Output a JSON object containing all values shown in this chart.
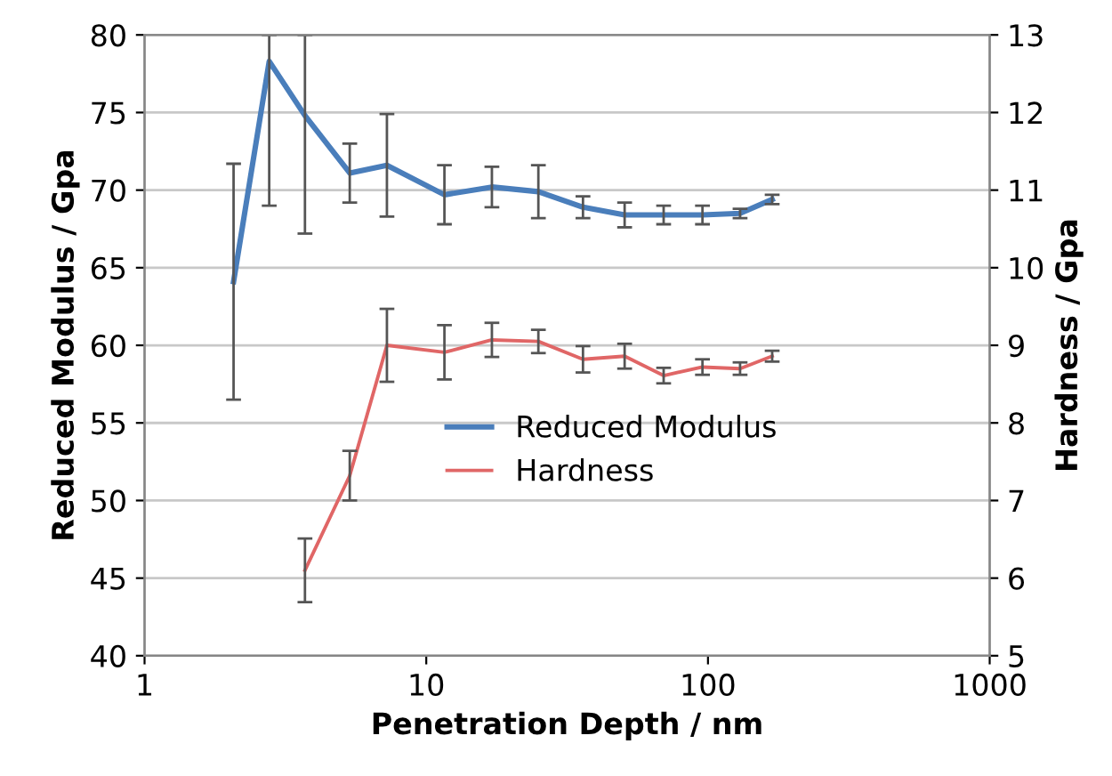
{
  "chart_data": {
    "type": "line",
    "xlabel": "Penetration Depth / nm",
    "ylabel": "Reduced Modulus / Gpa",
    "y2label": "Hardness / Gpa",
    "x": [
      2.07,
      2.77,
      3.71,
      5.35,
      7.25,
      11.6,
      17.1,
      25.0,
      36.0,
      50.6,
      69.6,
      95.6,
      130,
      169
    ],
    "series": [
      {
        "name": "Reduced Modulus",
        "color": "#4a7ebb",
        "values": [
          64.1,
          78.3,
          74.8,
          71.1,
          71.6,
          69.7,
          70.2,
          69.9,
          68.9,
          68.4,
          68.4,
          68.4,
          68.5,
          69.4
        ],
        "errors": [
          7.6,
          [
            69.0,
            80
          ],
          [
            67.2,
            80
          ],
          1.9,
          3.3,
          1.9,
          1.3,
          1.7,
          0.7,
          0.8,
          0.6,
          0.6,
          0.3,
          0.3
        ]
      },
      {
        "name": "Hardness",
        "color": "#e06666",
        "axis": "y2",
        "values": [
          null,
          null,
          6.1,
          7.32,
          9.0,
          8.91,
          9.07,
          9.05,
          8.82,
          8.86,
          8.61,
          8.72,
          8.7,
          8.86
        ],
        "errors": [
          null,
          null,
          0.41,
          0.32,
          0.47,
          0.35,
          0.22,
          0.15,
          0.17,
          0.16,
          0.1,
          0.1,
          0.08,
          0.07
        ]
      }
    ],
    "log": "x",
    "xlim": [
      1,
      1000
    ],
    "xticks": [
      1,
      10,
      100,
      1000
    ],
    "ylim": [
      40,
      80
    ],
    "yticks": [
      40,
      45,
      50,
      55,
      60,
      65,
      70,
      75,
      80
    ],
    "y2lim": [
      5,
      13
    ],
    "y2ticks": [
      5,
      6,
      7,
      8,
      9,
      10,
      11,
      12,
      13
    ],
    "grid": "y",
    "legend": "right",
    "marker": "none",
    "line_style": "solid"
  }
}
